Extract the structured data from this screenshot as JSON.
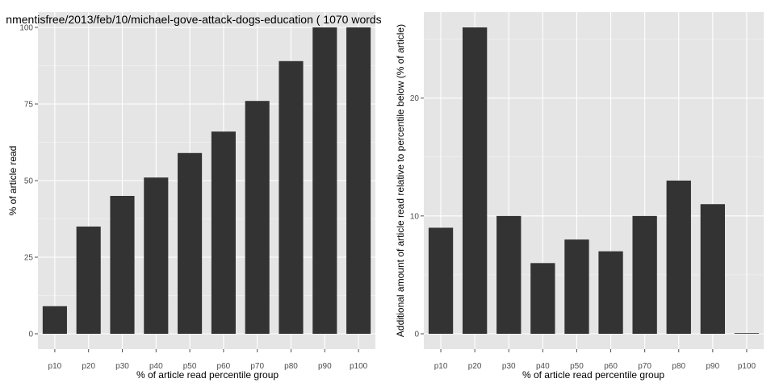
{
  "colors": {
    "panel_background": "#e5e5e5",
    "gridline": "#ffffff",
    "bar_fill": "#333333",
    "tick_text": "#4d4d4d",
    "text": "#000000"
  },
  "chart_data": [
    {
      "type": "bar",
      "title": "nmentisfree/2013/feb/10/michael-gove-attack-dogs-education ( 1070 words",
      "xlabel": "% of article read percentile group",
      "ylabel": "% of article read",
      "categories": [
        "p10",
        "p20",
        "p30",
        "p40",
        "p50",
        "p60",
        "p70",
        "p80",
        "p90",
        "p100"
      ],
      "values": [
        9,
        35,
        45,
        51,
        59,
        66,
        76,
        89,
        100,
        100
      ],
      "ylim": [
        -5,
        105
      ],
      "yticks": [
        0,
        25,
        50,
        75,
        100
      ],
      "grid": true
    },
    {
      "type": "bar",
      "title": "",
      "xlabel": "% of article read percentile group",
      "ylabel": "Additional amount of article read relative to percentile below (% of article)",
      "categories": [
        "p10",
        "p20",
        "p30",
        "p40",
        "p50",
        "p60",
        "p70",
        "p80",
        "p90",
        "p100"
      ],
      "values": [
        9,
        26,
        10,
        6,
        8,
        7,
        10,
        13,
        11,
        0
      ],
      "ylim": [
        -1.3,
        27.3
      ],
      "yticks": [
        0,
        10,
        20
      ],
      "grid": true
    }
  ]
}
